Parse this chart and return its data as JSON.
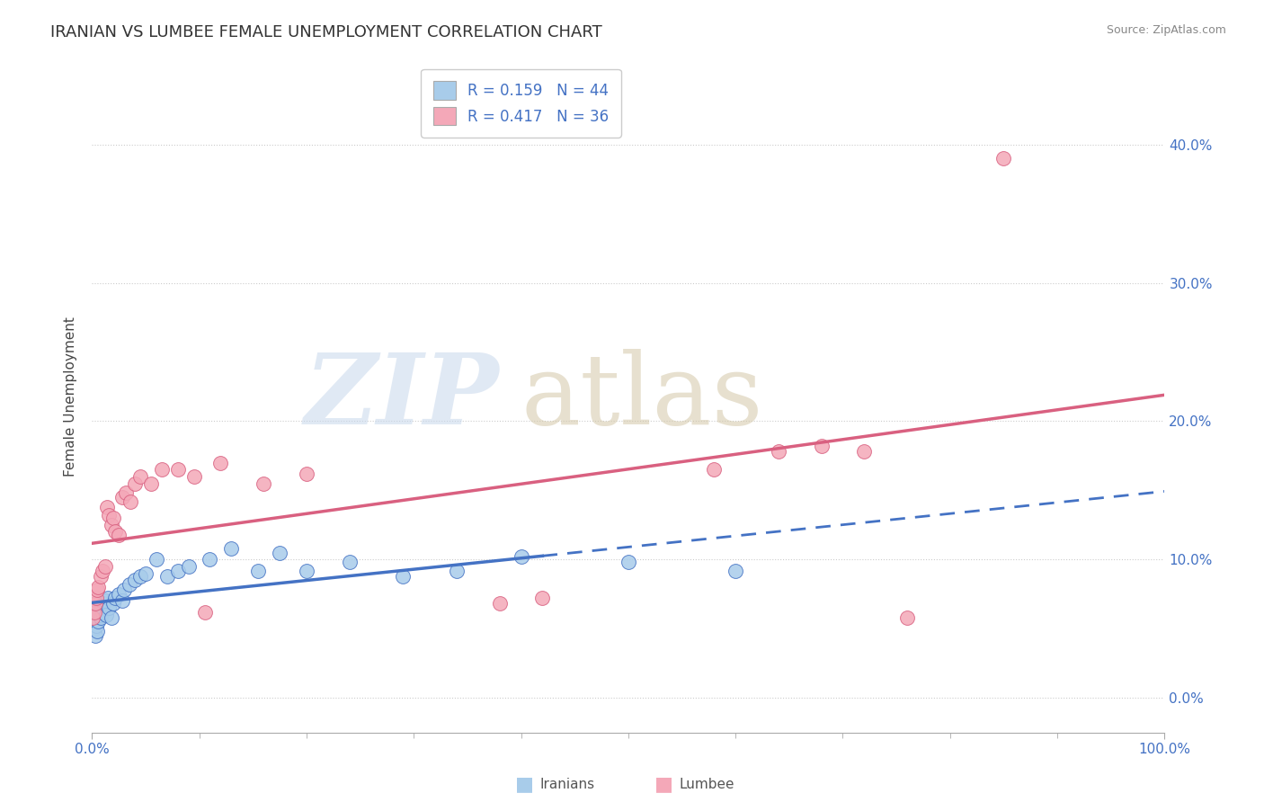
{
  "title": "IRANIAN VS LUMBEE FEMALE UNEMPLOYMENT CORRELATION CHART",
  "source": "Source: ZipAtlas.com",
  "ylabel": "Female Unemployment",
  "xlim": [
    0.0,
    1.0
  ],
  "ylim": [
    -0.025,
    0.46
  ],
  "yticks": [
    0.0,
    0.1,
    0.2,
    0.3,
    0.4
  ],
  "ytick_labels": [
    "0.0%",
    "10.0%",
    "20.0%",
    "30.0%",
    "40.0%"
  ],
  "iranians_R": 0.159,
  "iranians_N": 44,
  "lumbee_R": 0.417,
  "lumbee_N": 36,
  "iranians_color": "#A8CCEA",
  "lumbee_color": "#F4A8B8",
  "iranians_line_color": "#4472C4",
  "lumbee_line_color": "#D96080",
  "iranians_x": [
    0.001,
    0.002,
    0.002,
    0.003,
    0.003,
    0.004,
    0.004,
    0.005,
    0.005,
    0.006,
    0.007,
    0.008,
    0.009,
    0.01,
    0.011,
    0.012,
    0.013,
    0.015,
    0.016,
    0.018,
    0.02,
    0.022,
    0.025,
    0.028,
    0.03,
    0.035,
    0.04,
    0.045,
    0.05,
    0.06,
    0.07,
    0.08,
    0.09,
    0.11,
    0.13,
    0.155,
    0.175,
    0.2,
    0.24,
    0.29,
    0.34,
    0.4,
    0.5,
    0.6
  ],
  "iranians_y": [
    0.055,
    0.05,
    0.06,
    0.045,
    0.065,
    0.052,
    0.058,
    0.048,
    0.062,
    0.055,
    0.06,
    0.058,
    0.065,
    0.062,
    0.068,
    0.07,
    0.06,
    0.072,
    0.065,
    0.058,
    0.068,
    0.072,
    0.075,
    0.07,
    0.078,
    0.082,
    0.085,
    0.088,
    0.09,
    0.1,
    0.088,
    0.092,
    0.095,
    0.1,
    0.108,
    0.092,
    0.105,
    0.092,
    0.098,
    0.088,
    0.092,
    0.102,
    0.098,
    0.092
  ],
  "lumbee_x": [
    0.001,
    0.002,
    0.003,
    0.004,
    0.005,
    0.006,
    0.008,
    0.01,
    0.012,
    0.014,
    0.016,
    0.018,
    0.02,
    0.022,
    0.025,
    0.028,
    0.032,
    0.036,
    0.04,
    0.045,
    0.055,
    0.065,
    0.08,
    0.095,
    0.105,
    0.12,
    0.16,
    0.2,
    0.38,
    0.42,
    0.58,
    0.64,
    0.68,
    0.72,
    0.76,
    0.85
  ],
  "lumbee_y": [
    0.058,
    0.062,
    0.068,
    0.072,
    0.078,
    0.08,
    0.088,
    0.092,
    0.095,
    0.138,
    0.132,
    0.125,
    0.13,
    0.12,
    0.118,
    0.145,
    0.148,
    0.142,
    0.155,
    0.16,
    0.155,
    0.165,
    0.165,
    0.16,
    0.062,
    0.17,
    0.155,
    0.162,
    0.068,
    0.072,
    0.165,
    0.178,
    0.182,
    0.178,
    0.058,
    0.39
  ],
  "iran_line_solid_end": 0.42,
  "iran_line_x_start": 0.0,
  "iran_line_x_end": 1.0,
  "lumb_line_x_start": 0.0,
  "lumb_line_x_end": 1.0
}
